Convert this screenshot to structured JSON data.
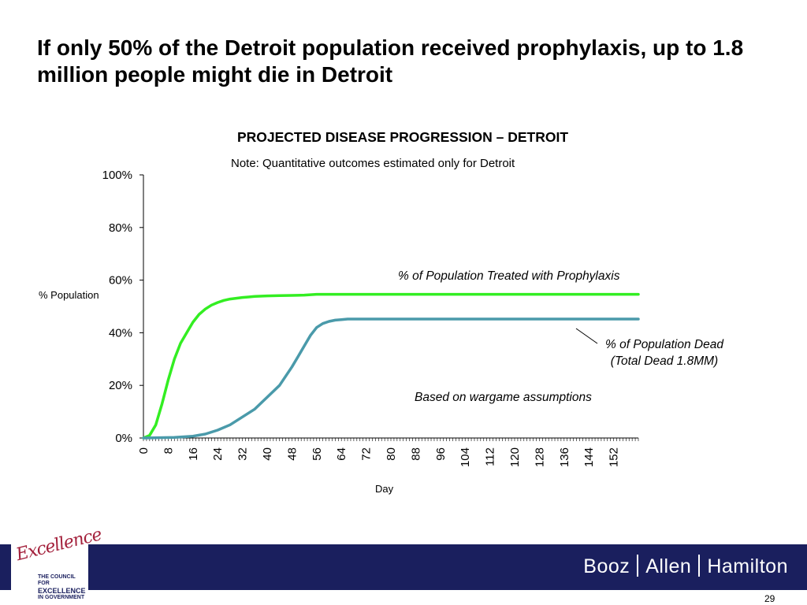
{
  "slide": {
    "title": "If only 50% of the Detroit population received prophylaxis, up to 1.8 million people might die in Detroit",
    "page_number": "29"
  },
  "footer": {
    "logo_script": "Excellence",
    "logo_lines": [
      "THE COUNCIL FOR",
      "EXCELLENCE",
      "IN GOVERNMENT"
    ],
    "brand": [
      "Booz",
      "Allen",
      "Hamilton"
    ],
    "bar_color": "#1a1f5e"
  },
  "chart_data": {
    "type": "line",
    "title": "PROJECTED DISEASE PROGRESSION – DETROIT",
    "note": "Note: Quantitative outcomes estimated only for Detroit",
    "xlabel": "Day",
    "ylabel": "% Population",
    "xlim": [
      0,
      160
    ],
    "ylim": [
      0,
      100
    ],
    "x_ticks": [
      0,
      8,
      16,
      24,
      32,
      40,
      48,
      56,
      64,
      72,
      80,
      88,
      96,
      104,
      112,
      120,
      128,
      136,
      144,
      152
    ],
    "y_ticks": [
      "0%",
      "20%",
      "40%",
      "60%",
      "80%",
      "100%"
    ],
    "grid": false,
    "series": [
      {
        "name": "% of Population Treated with Prophylaxis",
        "color": "#33ee22",
        "x": [
          0,
          2,
          4,
          6,
          8,
          10,
          12,
          14,
          16,
          18,
          20,
          22,
          24,
          26,
          28,
          30,
          32,
          34,
          36,
          40,
          44,
          48,
          52,
          56,
          60,
          160
        ],
        "y": [
          0,
          1,
          5,
          13,
          22,
          30,
          36,
          40,
          44,
          47,
          49,
          50.5,
          51.5,
          52.3,
          52.8,
          53.1,
          53.4,
          53.6,
          53.8,
          54.0,
          54.1,
          54.2,
          54.3,
          54.6,
          54.6,
          54.6
        ]
      },
      {
        "name": "% of Population Dead",
        "color": "#4a9aaa",
        "x": [
          0,
          10,
          16,
          20,
          24,
          28,
          32,
          36,
          40,
          44,
          48,
          50,
          52,
          54,
          56,
          58,
          60,
          62,
          64,
          66,
          160
        ],
        "y": [
          0,
          0.2,
          0.7,
          1.5,
          3,
          5,
          8,
          11,
          15.5,
          20,
          27,
          31,
          35,
          39,
          42,
          43.5,
          44.3,
          44.8,
          45,
          45.2,
          45.2
        ]
      }
    ],
    "annotations": {
      "treated": "% of Population Treated with Prophylaxis",
      "dead_line1": "% of Population Dead",
      "dead_line2": "(Total Dead 1.8MM)",
      "wargame": "Based on wargame assumptions"
    }
  }
}
